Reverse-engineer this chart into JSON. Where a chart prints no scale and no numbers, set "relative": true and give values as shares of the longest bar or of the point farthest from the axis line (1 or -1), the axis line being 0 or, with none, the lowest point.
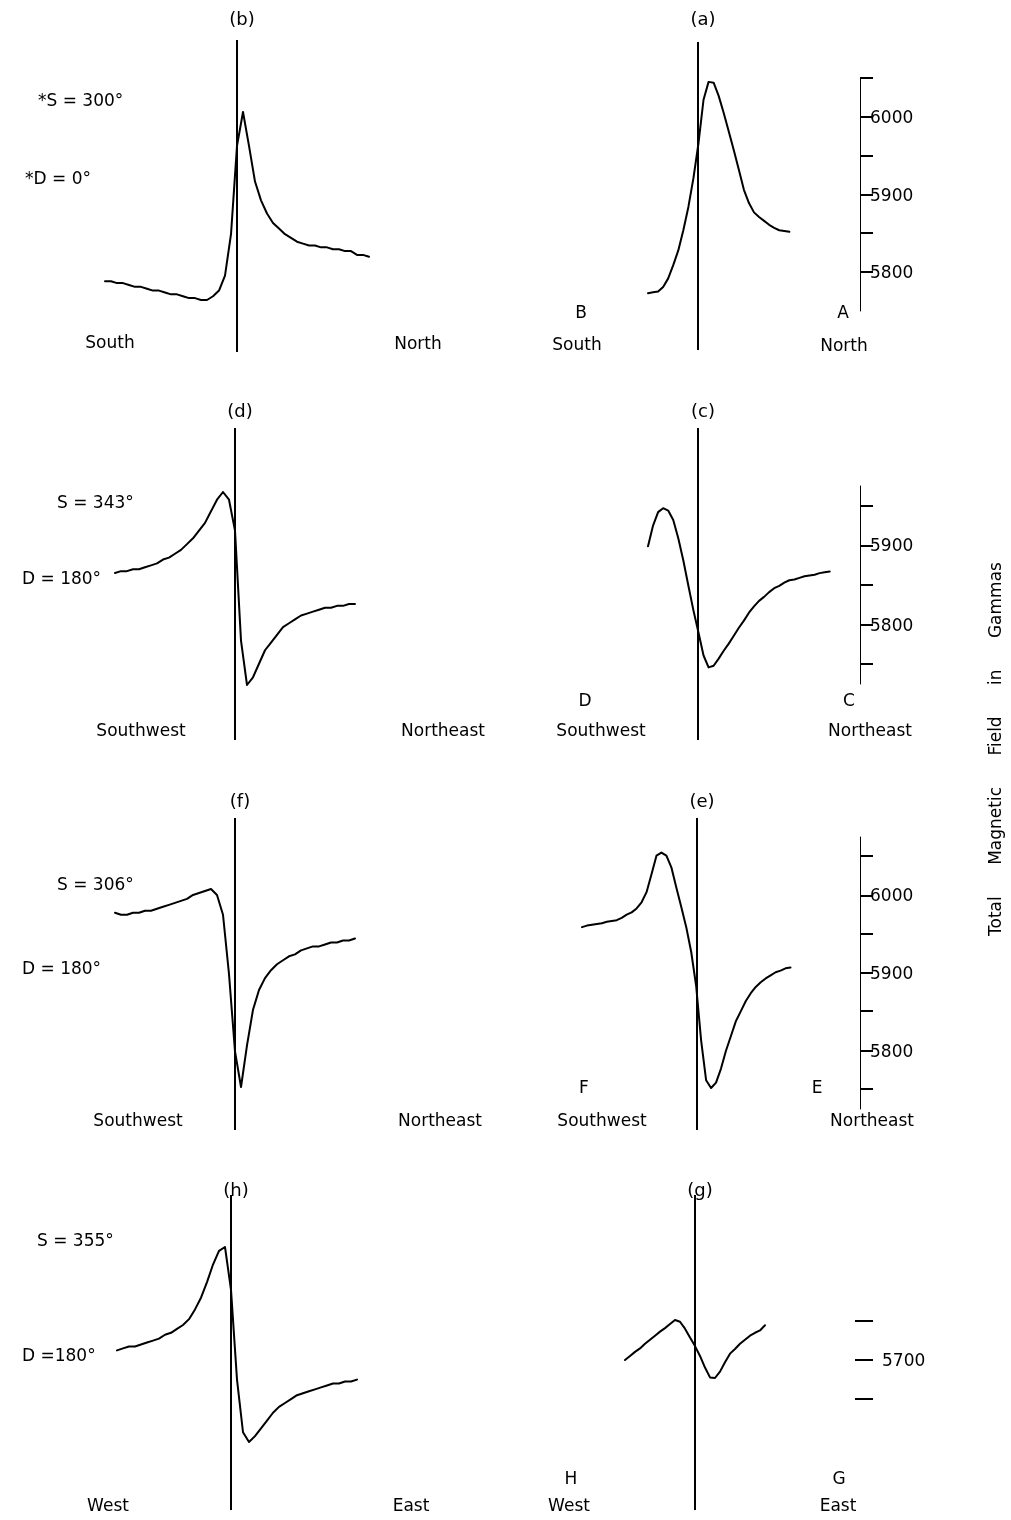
{
  "chart_data": [
    {
      "type": "line",
      "title": "(b)",
      "annotations": [
        "*S = 300°",
        "*D = 0°",
        "South",
        "North"
      ],
      "relative": true,
      "marker": "none",
      "tick_labels": false,
      "categories": [
        null,
        null,
        null,
        null,
        null,
        null,
        null,
        null,
        null,
        null,
        null,
        null,
        null,
        null,
        null,
        null,
        null,
        null,
        null,
        null,
        null,
        null,
        null,
        null,
        null,
        null,
        null,
        null,
        null,
        null,
        null,
        null,
        null,
        null,
        null,
        null,
        null,
        null,
        null,
        null,
        null,
        null,
        null,
        null,
        null
      ],
      "series": [
        {
          "color": "#000000",
          "values": [
            0.1,
            0.1,
            0.09,
            0.09,
            0.08,
            0.07,
            0.07,
            0.06,
            0.05,
            0.05,
            0.04,
            0.03,
            0.03,
            0.02,
            0.01,
            0.01,
            0,
            0,
            0.02,
            0.05,
            0.13,
            0.35,
            0.82,
            1,
            0.82,
            0.63,
            0.53,
            0.46,
            0.41,
            0.38,
            0.35,
            0.33,
            0.31,
            0.3,
            0.29,
            0.29,
            0.28,
            0.28,
            0.27,
            0.27,
            0.26,
            0.26,
            0.24,
            0.24,
            0.23
          ]
        }
      ]
    },
    {
      "type": "line",
      "title": "(a)",
      "annotations": [
        "B",
        "South",
        "A",
        "North"
      ],
      "marker": "none",
      "tick_labels": "y",
      "ylim": [
        5750,
        6050
      ],
      "yticks": [
        5800,
        5900,
        6000
      ],
      "categories": [
        null,
        null,
        null,
        null,
        null,
        null,
        null,
        null,
        null,
        null,
        null,
        null,
        null,
        null,
        null,
        null,
        null,
        null,
        null,
        null,
        null,
        null,
        null,
        null,
        null,
        null,
        null,
        null,
        null
      ],
      "series": [
        {
          "color": "#000000",
          "values": [
            5773,
            5774,
            5775,
            5781,
            5792,
            5809,
            5828,
            5854,
            5884,
            5921,
            5966,
            6022,
            6045,
            6044,
            6027,
            6005,
            5981,
            5957,
            5932,
            5906,
            5889,
            5877,
            5871,
            5866,
            5861,
            5857,
            5854,
            5853,
            5852
          ]
        }
      ]
    },
    {
      "type": "line",
      "title": "(d)",
      "annotations": [
        "S = 343°",
        "D = 180°",
        "Southwest",
        "Northeast"
      ],
      "relative": true,
      "marker": "none",
      "tick_labels": false,
      "categories": [
        null,
        null,
        null,
        null,
        null,
        null,
        null,
        null,
        null,
        null,
        null,
        null,
        null,
        null,
        null,
        null,
        null,
        null,
        null,
        null,
        null,
        null,
        null,
        null,
        null,
        null,
        null,
        null,
        null,
        null,
        null,
        null,
        null,
        null,
        null,
        null,
        null,
        null,
        null,
        null,
        null
      ],
      "series": [
        {
          "color": "#000000",
          "values": [
            0.58,
            0.59,
            0.59,
            0.6,
            0.6,
            0.61,
            0.62,
            0.63,
            0.65,
            0.66,
            0.68,
            0.7,
            0.73,
            0.76,
            0.8,
            0.84,
            0.9,
            0.96,
            1,
            0.96,
            0.8,
            0.23,
            0,
            0.04,
            0.11,
            0.18,
            0.22,
            0.26,
            0.3,
            0.32,
            0.34,
            0.36,
            0.37,
            0.38,
            0.39,
            0.4,
            0.4,
            0.41,
            0.41,
            0.42,
            0.42
          ]
        }
      ]
    },
    {
      "type": "line",
      "title": "(c)",
      "ylabel": "Total Magnetic Field in Gammas",
      "annotations": [
        "D",
        "Southwest",
        "C",
        "Northeast"
      ],
      "marker": "none",
      "tick_labels": "y",
      "ylim": [
        5725,
        5975
      ],
      "yticks": [
        5800,
        5900
      ],
      "categories": [
        null,
        null,
        null,
        null,
        null,
        null,
        null,
        null,
        null,
        null,
        null,
        null,
        null,
        null,
        null,
        null,
        null,
        null,
        null,
        null,
        null,
        null,
        null,
        null,
        null,
        null,
        null,
        null,
        null,
        null,
        null,
        null,
        null,
        null,
        null,
        null,
        null
      ],
      "series": [
        {
          "color": "#000000",
          "values": [
            5899,
            5925,
            5942,
            5947,
            5944,
            5932,
            5909,
            5881,
            5849,
            5818,
            5790,
            5761,
            5746,
            5748,
            5757,
            5767,
            5776,
            5786,
            5796,
            5805,
            5815,
            5823,
            5830,
            5835,
            5841,
            5846,
            5849,
            5853,
            5856,
            5857,
            5859,
            5861,
            5862,
            5863,
            5865,
            5866,
            5867
          ]
        }
      ]
    },
    {
      "type": "line",
      "title": "(f)",
      "annotations": [
        "S = 306°",
        "D = 180°",
        "Southwest",
        "Northeast"
      ],
      "relative": true,
      "marker": "none",
      "tick_labels": false,
      "categories": [
        null,
        null,
        null,
        null,
        null,
        null,
        null,
        null,
        null,
        null,
        null,
        null,
        null,
        null,
        null,
        null,
        null,
        null,
        null,
        null,
        null,
        null,
        null,
        null,
        null,
        null,
        null,
        null,
        null,
        null,
        null,
        null,
        null,
        null,
        null,
        null,
        null,
        null,
        null,
        null,
        null
      ],
      "series": [
        {
          "color": "#000000",
          "values": [
            0.88,
            0.87,
            0.87,
            0.88,
            0.88,
            0.89,
            0.89,
            0.9,
            0.91,
            0.92,
            0.93,
            0.94,
            0.95,
            0.97,
            0.98,
            0.99,
            1,
            0.97,
            0.87,
            0.57,
            0.18,
            0,
            0.21,
            0.39,
            0.49,
            0.55,
            0.59,
            0.62,
            0.64,
            0.66,
            0.67,
            0.69,
            0.7,
            0.71,
            0.71,
            0.72,
            0.73,
            0.73,
            0.74,
            0.74,
            0.75
          ]
        }
      ]
    },
    {
      "type": "line",
      "title": "(e)",
      "annotations": [
        "F",
        "Southwest",
        "E",
        "Northeast"
      ],
      "marker": "none",
      "tick_labels": "y",
      "ylim": [
        5725,
        6075
      ],
      "yticks": [
        5800,
        5900,
        6000
      ],
      "categories": [
        null,
        null,
        null,
        null,
        null,
        null,
        null,
        null,
        null,
        null,
        null,
        null,
        null,
        null,
        null,
        null,
        null,
        null,
        null,
        null,
        null,
        null,
        null,
        null,
        null,
        null,
        null,
        null,
        null,
        null,
        null,
        null,
        null,
        null,
        null,
        null,
        null,
        null,
        null,
        null,
        null,
        null,
        null
      ],
      "series": [
        {
          "color": "#000000",
          "values": [
            5959,
            5961,
            5962,
            5963,
            5964,
            5966,
            5967,
            5968,
            5971,
            5975,
            5978,
            5983,
            5991,
            6004,
            6027,
            6051,
            6055,
            6051,
            6036,
            6010,
            5985,
            5959,
            5927,
            5883,
            5813,
            5762,
            5752,
            5759,
            5777,
            5800,
            5819,
            5838,
            5851,
            5864,
            5874,
            5882,
            5888,
            5893,
            5897,
            5901,
            5903,
            5906,
            5907
          ]
        }
      ]
    },
    {
      "type": "line",
      "title": "(h)",
      "annotations": [
        "S = 355°",
        "D =180°",
        "West",
        "East"
      ],
      "relative": true,
      "marker": "none",
      "tick_labels": false,
      "categories": [
        null,
        null,
        null,
        null,
        null,
        null,
        null,
        null,
        null,
        null,
        null,
        null,
        null,
        null,
        null,
        null,
        null,
        null,
        null,
        null,
        null,
        null,
        null,
        null,
        null,
        null,
        null,
        null,
        null,
        null,
        null,
        null,
        null,
        null,
        null,
        null,
        null,
        null,
        null,
        null,
        null
      ],
      "series": [
        {
          "color": "#000000",
          "values": [
            0.47,
            0.48,
            0.49,
            0.49,
            0.5,
            0.51,
            0.52,
            0.53,
            0.55,
            0.56,
            0.58,
            0.6,
            0.63,
            0.68,
            0.74,
            0.82,
            0.91,
            0.98,
            1,
            0.78,
            0.32,
            0.05,
            0,
            0.03,
            0.07,
            0.11,
            0.15,
            0.18,
            0.2,
            0.22,
            0.24,
            0.25,
            0.26,
            0.27,
            0.28,
            0.29,
            0.3,
            0.3,
            0.31,
            0.31,
            0.32
          ]
        }
      ]
    },
    {
      "type": "line",
      "title": "(g)",
      "annotations": [
        "H",
        "West",
        "G",
        "East",
        "5700"
      ],
      "relative": true,
      "marker": "none",
      "tick_labels": false,
      "categories": [
        null,
        null,
        null,
        null,
        null,
        null,
        null,
        null,
        null,
        null,
        null,
        null,
        null,
        null,
        null,
        null,
        null,
        null,
        null,
        null,
        null,
        null,
        null,
        null,
        null,
        null,
        null,
        null,
        null
      ],
      "series": [
        {
          "color": "#000000",
          "values": [
            0.31,
            0.38,
            0.45,
            0.51,
            0.59,
            0.66,
            0.73,
            0.8,
            0.86,
            0.93,
            1,
            0.97,
            0.85,
            0.7,
            0.55,
            0.38,
            0.18,
            0.01,
            0,
            0.11,
            0.27,
            0.42,
            0.5,
            0.59,
            0.66,
            0.73,
            0.78,
            0.82,
            0.91
          ]
        }
      ]
    }
  ]
}
